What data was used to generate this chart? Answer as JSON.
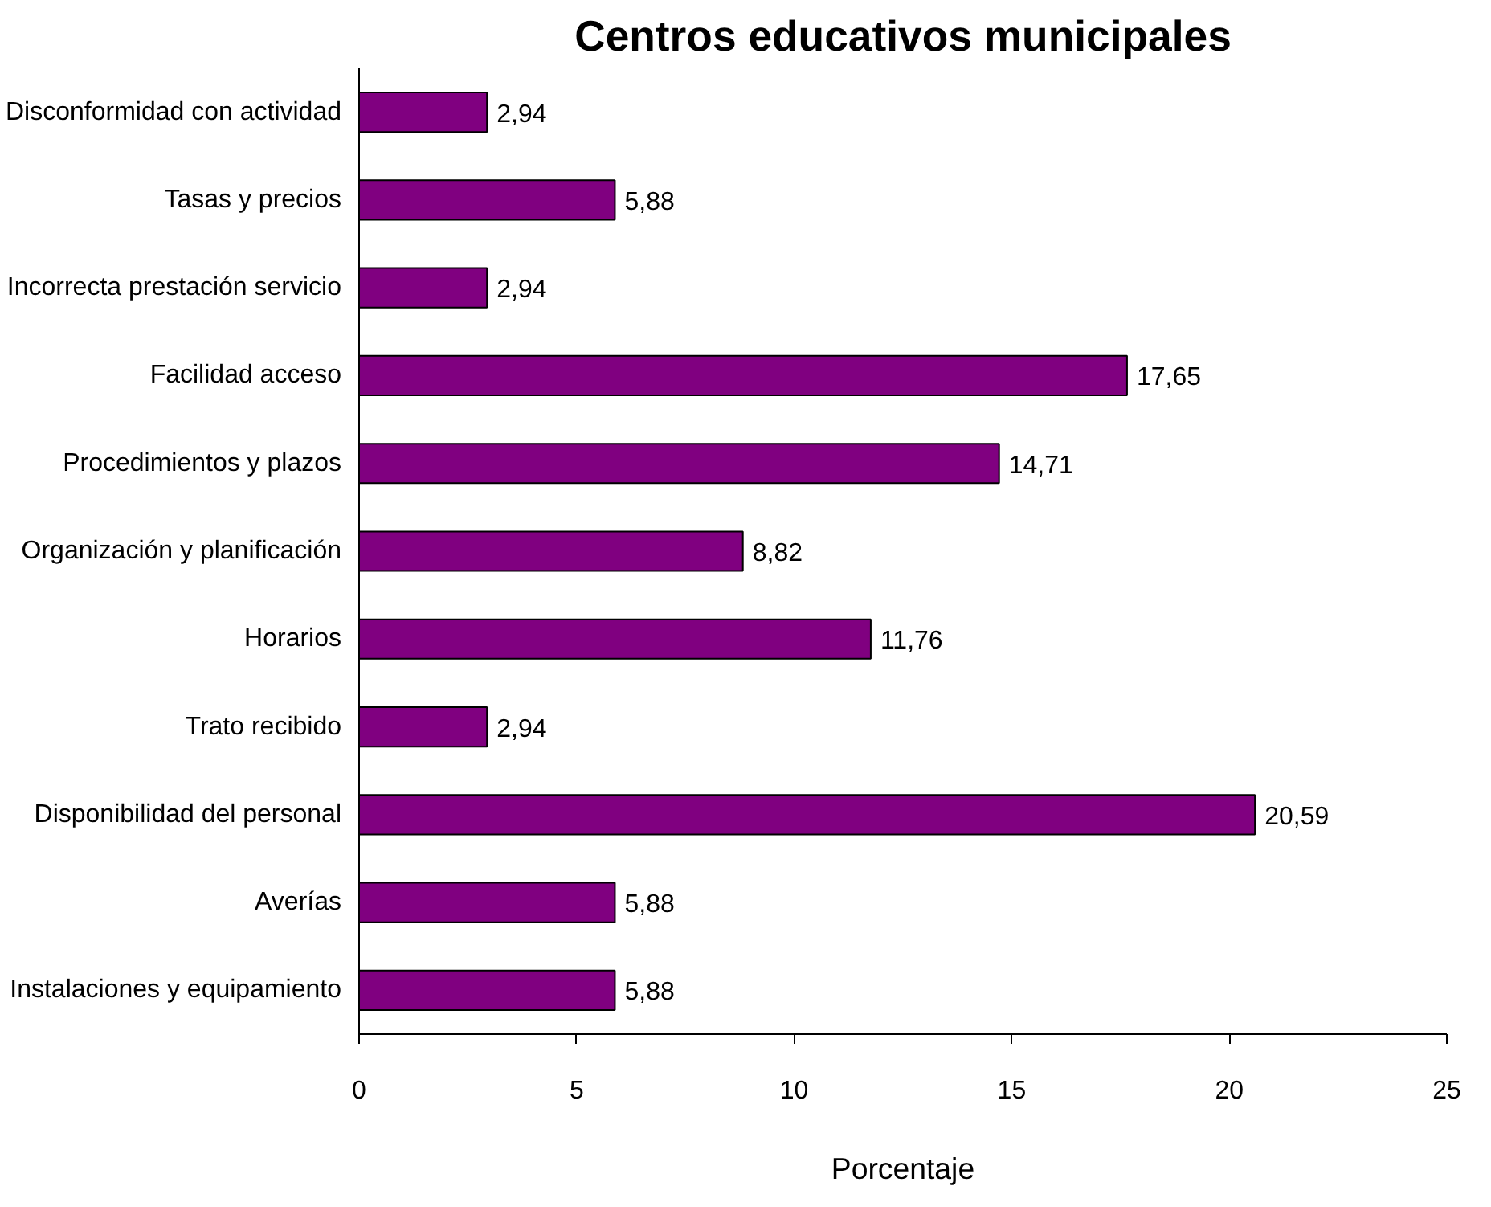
{
  "chart_data": {
    "type": "bar",
    "orientation": "horizontal",
    "title": "Centros educativos municipales",
    "xlabel": "Porcentaje",
    "categories": [
      "Disconformidad con actividad",
      "Tasas y precios",
      "Incorrecta prestación servicio",
      "Facilidad acceso",
      "Procedimientos y plazos",
      "Organización y planificación",
      "Horarios",
      "Trato recibido",
      "Disponibilidad del personal",
      "Averías",
      "Instalaciones y equipamiento"
    ],
    "values": [
      2.94,
      5.88,
      2.94,
      17.65,
      14.71,
      8.82,
      11.76,
      2.94,
      20.59,
      5.88,
      5.88
    ],
    "value_labels": [
      "2,94",
      "5,88",
      "2,94",
      "17,65",
      "14,71",
      "8,82",
      "11,76",
      "2,94",
      "20,59",
      "5,88",
      "5,88"
    ],
    "color": "#800080",
    "xlim": [
      0,
      25
    ],
    "xticks": [
      0,
      5,
      10,
      15,
      20,
      25
    ],
    "grid": false
  }
}
